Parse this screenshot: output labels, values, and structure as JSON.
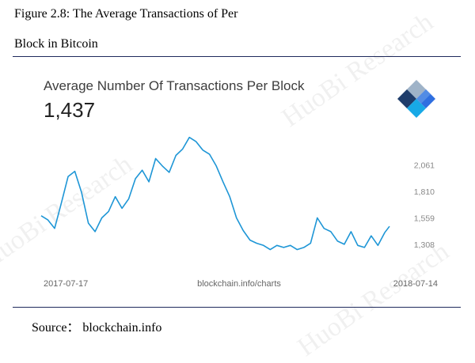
{
  "figure": {
    "title_line1": "Figure 2.8: The Average Transactions of Per",
    "title_line2": "Block in Bitcoin"
  },
  "source_text": "Source： blockchain.info",
  "watermark": "HuoBi Research",
  "chart_card": {
    "title": "Average Number Of Transactions Per Block",
    "value": "1,437",
    "logo_icon": "blockchain-logo-icon"
  },
  "chart_data": {
    "type": "line",
    "title": "Average Number Of Transactions Per Block",
    "headline_value": 1437,
    "x_start_label": "2017-07-17",
    "x_end_label": "2018-07-14",
    "source_label": "blockchain.info/charts",
    "y_ticks": [
      2061,
      1810,
      1559,
      1308
    ],
    "ylim": [
      1160,
      2430
    ],
    "grid": false,
    "color": "#1e96d6",
    "x": [
      "2017-07-17",
      "2017-07-24",
      "2017-07-31",
      "2017-08-07",
      "2017-08-14",
      "2017-08-21",
      "2017-08-28",
      "2017-09-04",
      "2017-09-11",
      "2017-09-18",
      "2017-09-25",
      "2017-10-02",
      "2017-10-09",
      "2017-10-16",
      "2017-10-23",
      "2017-10-30",
      "2017-11-06",
      "2017-11-13",
      "2017-11-20",
      "2017-11-27",
      "2017-12-04",
      "2017-12-11",
      "2017-12-18",
      "2017-12-25",
      "2018-01-01",
      "2018-01-08",
      "2018-01-15",
      "2018-01-22",
      "2018-01-29",
      "2018-02-05",
      "2018-02-12",
      "2018-02-19",
      "2018-02-26",
      "2018-03-05",
      "2018-03-12",
      "2018-03-19",
      "2018-03-26",
      "2018-04-02",
      "2018-04-09",
      "2018-04-16",
      "2018-04-23",
      "2018-04-30",
      "2018-05-07",
      "2018-05-14",
      "2018-05-21",
      "2018-05-28",
      "2018-06-04",
      "2018-06-11",
      "2018-06-18",
      "2018-06-25",
      "2018-07-02",
      "2018-07-09",
      "2018-07-14"
    ],
    "y": [
      1580,
      1540,
      1460,
      1700,
      1950,
      2000,
      1800,
      1510,
      1430,
      1560,
      1620,
      1760,
      1650,
      1740,
      1930,
      2010,
      1900,
      2120,
      2050,
      1990,
      2150,
      2210,
      2320,
      2280,
      2200,
      2160,
      2050,
      1900,
      1760,
      1560,
      1440,
      1350,
      1320,
      1300,
      1260,
      1300,
      1280,
      1300,
      1260,
      1280,
      1320,
      1560,
      1460,
      1430,
      1340,
      1310,
      1430,
      1300,
      1280,
      1390,
      1300,
      1420,
      1480
    ]
  }
}
